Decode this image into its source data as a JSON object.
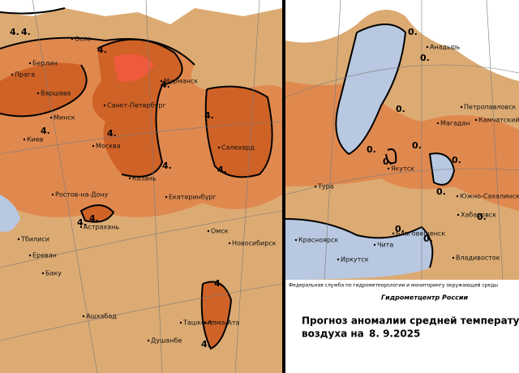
{
  "left_map": {
    "cities": [
      "Осло",
      "Берлин",
      "Прага",
      "Варшава",
      "Мурманск",
      "Санкт-Петербург",
      "Минск",
      "Киев",
      "Москва",
      "Салехард",
      "Казань",
      "Екатеринбург",
      "Ростов-на-Дону",
      "Астрахань",
      "Тбилиси",
      "Ереван",
      "Омск",
      "Новосибирск",
      "Баку",
      "Ашхабад",
      "Ташкент",
      "Алма-Ата",
      "Душанбе"
    ],
    "contour_labels": [
      "4.",
      "4.",
      "4.",
      "4.",
      "4.",
      "4.",
      "4.",
      "4.",
      "4.",
      "4.",
      "4.",
      "4.",
      "4."
    ]
  },
  "right_map": {
    "cities": [
      "Анадырь",
      "Петропавловск",
      "Магадан",
      "Камчатский",
      "Якутск",
      "Тура",
      "Южно-Сахалинск",
      "Хабаровск",
      "Благовещенск",
      "Красноярск",
      "Чита",
      "Иркутск",
      "Владивосток"
    ],
    "contour_labels": [
      "0.",
      "0.",
      "0.",
      "0.",
      "0.",
      "0.",
      "0.",
      "0.",
      "0.",
      "0.",
      "0."
    ]
  },
  "footer": {
    "agency": "Федеральная служба по гидрометеорологии и мониторингу окружающей среды",
    "center": "Гидрометцентр России",
    "title_line1": "Прогноз аномалии средней температуры",
    "title_line2": "воздуха на",
    "date": "8. 9.2025"
  }
}
